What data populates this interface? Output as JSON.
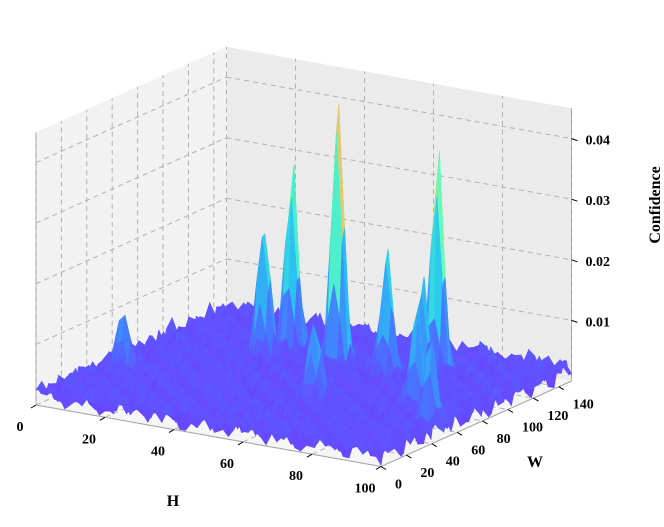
{
  "chart_data": {
    "type": "surface3d",
    "title": "",
    "xlabel": "H",
    "ylabel": "W",
    "zlabel": "Confidence",
    "xlim": [
      0,
      100
    ],
    "ylim": [
      0,
      150
    ],
    "zlim": [
      0,
      0.045
    ],
    "x_ticks": [
      0,
      20,
      40,
      60,
      80,
      100
    ],
    "y_ticks": [
      0,
      20,
      40,
      60,
      80,
      100,
      120,
      140
    ],
    "z_ticks": [
      0.01,
      0.02,
      0.03,
      0.04
    ],
    "z_tick_labels": [
      "0.01",
      "0.02",
      "0.03",
      "0.04"
    ],
    "grid": true,
    "colormap": "rainbow",
    "peaks": [
      {
        "h": 33,
        "w": 112,
        "confidence": 0.0335
      },
      {
        "h": 30,
        "w": 98,
        "confidence": 0.0245
      },
      {
        "h": 50,
        "w": 102,
        "confidence": 0.045
      },
      {
        "h": 73,
        "w": 118,
        "confidence": 0.0385
      },
      {
        "h": 65,
        "w": 100,
        "confidence": 0.024
      },
      {
        "h": 78,
        "w": 92,
        "confidence": 0.0205
      },
      {
        "h": 86,
        "w": 66,
        "confidence": 0.0195
      },
      {
        "h": 96,
        "w": 50,
        "confidence": 0.0165
      },
      {
        "h": 8,
        "w": 48,
        "confidence": 0.0125
      },
      {
        "h": 60,
        "w": 56,
        "confidence": 0.015
      }
    ]
  }
}
